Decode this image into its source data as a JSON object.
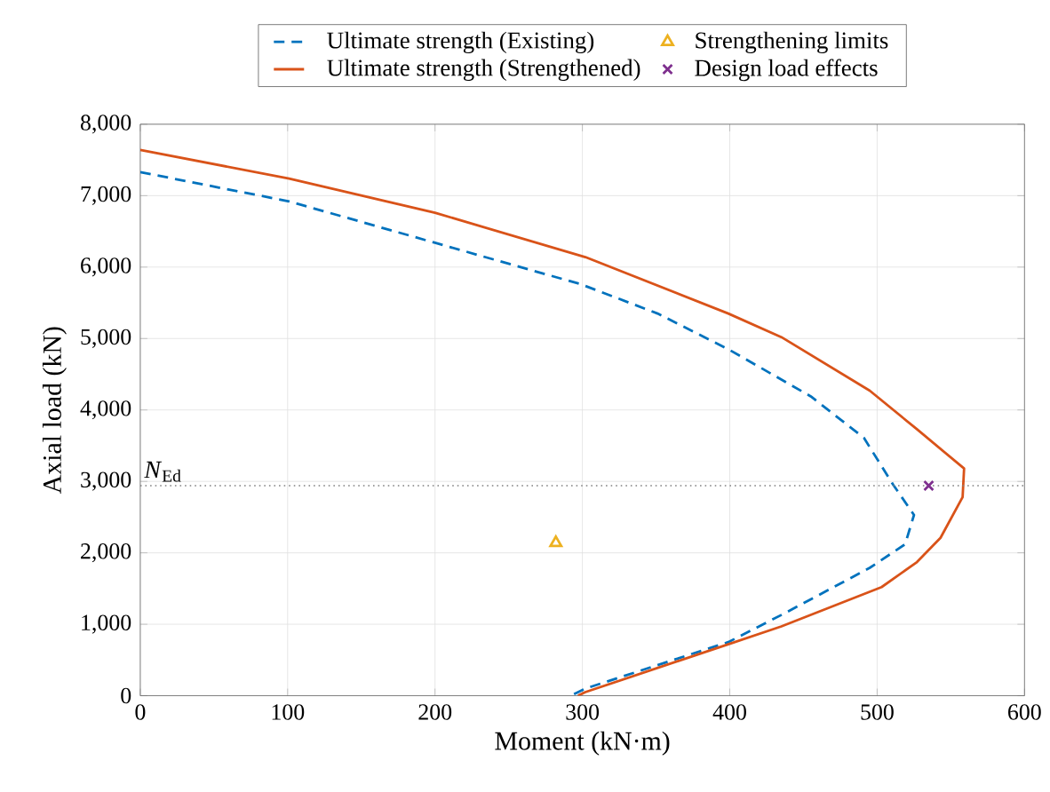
{
  "chart_data": {
    "type": "line",
    "xlabel": "Moment (kN·m)",
    "ylabel": "Axial load (kN)",
    "xlim": [
      0,
      600
    ],
    "ylim": [
      0,
      8000
    ],
    "xticks": [
      0,
      100,
      200,
      300,
      400,
      500,
      600
    ],
    "yticks": [
      0,
      {
        "value": 1000,
        "label": "1,000"
      },
      {
        "value": 2000,
        "label": "2,000"
      },
      {
        "value": 3000,
        "label": "3,000"
      },
      {
        "value": 4000,
        "label": "4,000"
      },
      {
        "value": 5000,
        "label": "5,000"
      },
      {
        "value": 6000,
        "label": "6,000"
      },
      {
        "value": 7000,
        "label": "7,000"
      },
      {
        "value": 8000,
        "label": "8,000"
      }
    ],
    "grid": true,
    "legend": "top",
    "ref_lines": [
      {
        "axis": "y",
        "value": 2940,
        "label": "*N*$_{Ed}$",
        "color": "#808080",
        "line_style": "dotted"
      }
    ],
    "series": [
      {
        "name": "Ultimate strength (Existing)",
        "color": "#0072bd",
        "line_style": "dashed",
        "marker": "none",
        "x": [
          0,
          101,
          200,
          299,
          351,
          399,
          455,
          491,
          511,
          525,
          519,
          495,
          435,
          399,
          302,
          292
        ],
        "values": [
          7330,
          6920,
          6340,
          5760,
          5350,
          4850,
          4190,
          3610,
          2950,
          2530,
          2120,
          1790,
          1130,
          750,
          100,
          0
        ]
      },
      {
        "name": "Ultimate strength (Strengthened)",
        "color": "#d95319",
        "line_style": "solid",
        "marker": "none",
        "x": [
          0,
          101,
          200,
          302,
          399,
          435,
          495,
          527,
          559,
          558,
          543,
          527,
          503,
          435,
          399,
          302,
          297
        ],
        "values": [
          7640,
          7240,
          6760,
          6140,
          5350,
          5020,
          4270,
          3730,
          3180,
          2780,
          2210,
          1870,
          1520,
          970,
          720,
          50,
          0
        ]
      },
      {
        "name": "Strengthening limits",
        "type": "scatter",
        "color": "#edb120",
        "marker": "triangle",
        "x": [
          282
        ],
        "values": [
          2140
        ]
      },
      {
        "name": "Design load effects",
        "type": "scatter",
        "color": "#7e2f8e",
        "marker": "cross",
        "x": [
          535
        ],
        "values": [
          2940
        ]
      }
    ]
  }
}
